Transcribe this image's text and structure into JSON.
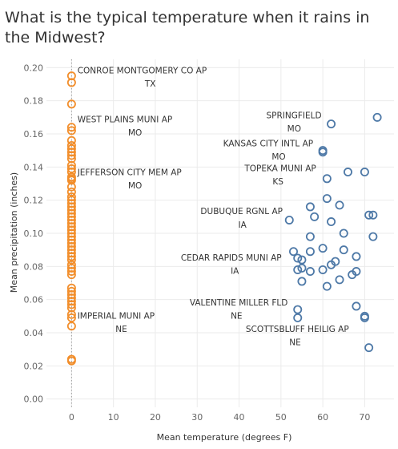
{
  "chart_data": {
    "type": "scatter",
    "title": "What is the typical temperature when it rains in the Midwest?",
    "xlabel": "Mean temperature (degrees F)",
    "ylabel": "Mean precipitation (inches)",
    "xlim": [
      -6,
      77
    ],
    "ylim": [
      -0.005,
      0.205
    ],
    "xticks": [
      0,
      10,
      20,
      30,
      40,
      50,
      60,
      70
    ],
    "yticks": [
      "0.00",
      "0.02",
      "0.04",
      "0.06",
      "0.08",
      "0.10",
      "0.12",
      "0.14",
      "0.16",
      "0.18",
      "0.20"
    ],
    "ytick_values": [
      0,
      0.02,
      0.04,
      0.06,
      0.08,
      0.1,
      0.12,
      0.14,
      0.16,
      0.18,
      0.2
    ],
    "grid": true,
    "series": [
      {
        "color": "#f28e2b",
        "points": [
          [
            0,
            0.195
          ],
          [
            0,
            0.191
          ],
          [
            0,
            0.178
          ],
          [
            0,
            0.164
          ],
          [
            0,
            0.162
          ],
          [
            0,
            0.156
          ],
          [
            0,
            0.153
          ],
          [
            0,
            0.151
          ],
          [
            0,
            0.149
          ],
          [
            0,
            0.147
          ],
          [
            0,
            0.145
          ],
          [
            0,
            0.141
          ],
          [
            0,
            0.139
          ],
          [
            0,
            0.137
          ],
          [
            0,
            0.134
          ],
          [
            0,
            0.133
          ],
          [
            0,
            0.132
          ],
          [
            0,
            0.128
          ],
          [
            0,
            0.125
          ],
          [
            0,
            0.122
          ],
          [
            0,
            0.12
          ],
          [
            0,
            0.118
          ],
          [
            0,
            0.116
          ],
          [
            0,
            0.114
          ],
          [
            0,
            0.112
          ],
          [
            0,
            0.11
          ],
          [
            0,
            0.108
          ],
          [
            0,
            0.106
          ],
          [
            0,
            0.104
          ],
          [
            0,
            0.102
          ],
          [
            0,
            0.1
          ],
          [
            0,
            0.098
          ],
          [
            0,
            0.096
          ],
          [
            0,
            0.094
          ],
          [
            0,
            0.092
          ],
          [
            0,
            0.09
          ],
          [
            0,
            0.088
          ],
          [
            0,
            0.086
          ],
          [
            0,
            0.084
          ],
          [
            0,
            0.081
          ],
          [
            0,
            0.079
          ],
          [
            0,
            0.077
          ],
          [
            0,
            0.075
          ],
          [
            0,
            0.067
          ],
          [
            0,
            0.065
          ],
          [
            0,
            0.063
          ],
          [
            0,
            0.061
          ],
          [
            0,
            0.059
          ],
          [
            0,
            0.057
          ],
          [
            0,
            0.055
          ],
          [
            0,
            0.051
          ],
          [
            0,
            0.049
          ],
          [
            0,
            0.044
          ],
          [
            0,
            0.024
          ],
          [
            0,
            0.023
          ]
        ]
      },
      {
        "color": "#4e79a7",
        "points": [
          [
            73,
            0.17
          ],
          [
            62,
            0.166
          ],
          [
            60,
            0.15
          ],
          [
            60,
            0.149
          ],
          [
            61,
            0.133
          ],
          [
            66,
            0.137
          ],
          [
            70,
            0.137
          ],
          [
            64,
            0.117
          ],
          [
            61,
            0.121
          ],
          [
            57,
            0.116
          ],
          [
            58,
            0.11
          ],
          [
            62,
            0.107
          ],
          [
            52,
            0.108
          ],
          [
            71,
            0.111
          ],
          [
            72,
            0.111
          ],
          [
            65,
            0.1
          ],
          [
            72,
            0.098
          ],
          [
            57,
            0.098
          ],
          [
            60,
            0.091
          ],
          [
            65,
            0.09
          ],
          [
            57,
            0.089
          ],
          [
            53,
            0.089
          ],
          [
            68,
            0.086
          ],
          [
            55,
            0.084
          ],
          [
            54,
            0.085
          ],
          [
            63,
            0.083
          ],
          [
            62,
            0.081
          ],
          [
            55,
            0.079
          ],
          [
            54,
            0.078
          ],
          [
            57,
            0.077
          ],
          [
            60,
            0.078
          ],
          [
            68,
            0.077
          ],
          [
            67,
            0.075
          ],
          [
            64,
            0.072
          ],
          [
            55,
            0.071
          ],
          [
            61,
            0.068
          ],
          [
            68,
            0.056
          ],
          [
            54,
            0.054
          ],
          [
            54,
            0.049
          ],
          [
            70,
            0.05
          ],
          [
            70,
            0.049
          ],
          [
            71,
            0.031
          ]
        ]
      }
    ],
    "annotations": [
      {
        "text": "CONROE MONTGOMERY CO AP",
        "x": 1.4,
        "y": 0.1965
      },
      {
        "text": "TX",
        "x": 17.5,
        "y": 0.1885
      },
      {
        "text": "WEST PLAINS MUNI AP",
        "x": 1.4,
        "y": 0.167
      },
      {
        "text": "MO",
        "x": 13.5,
        "y": 0.159
      },
      {
        "text": "JEFFERSON CITY MEM AP",
        "x": 1.4,
        "y": 0.135
      },
      {
        "text": "MO",
        "x": 13.5,
        "y": 0.127
      },
      {
        "text": "IMPERIAL MUNI AP",
        "x": 1.4,
        "y": 0.0485
      },
      {
        "text": "NE",
        "x": 10.5,
        "y": 0.0405
      },
      {
        "text": "SPRINGFIELD",
        "x": 46.5,
        "y": 0.1695
      },
      {
        "text": "MO",
        "x": 51.5,
        "y": 0.1615
      },
      {
        "text": "KANSAS CITY INTL AP",
        "x": 36.2,
        "y": 0.1525
      },
      {
        "text": "MO",
        "x": 47.8,
        "y": 0.1445
      },
      {
        "text": "TOPEKA MUNI AP",
        "x": 41.3,
        "y": 0.1375
      },
      {
        "text": "KS",
        "x": 48.0,
        "y": 0.1295
      },
      {
        "text": "DUBUQUE RGNL AP",
        "x": 30.8,
        "y": 0.1115
      },
      {
        "text": "IA",
        "x": 39.8,
        "y": 0.1035
      },
      {
        "text": "CEDAR RAPIDS MUNI AP",
        "x": 26.1,
        "y": 0.0835
      },
      {
        "text": "IA",
        "x": 38.0,
        "y": 0.0755
      },
      {
        "text": "VALENTINE MILLER FLD",
        "x": 28.2,
        "y": 0.0565
      },
      {
        "text": "NE",
        "x": 38.0,
        "y": 0.0485
      },
      {
        "text": "SCOTTSBLUFF HEILIG AP",
        "x": 41.6,
        "y": 0.0405
      },
      {
        "text": "NE",
        "x": 52.0,
        "y": 0.0325
      }
    ]
  }
}
